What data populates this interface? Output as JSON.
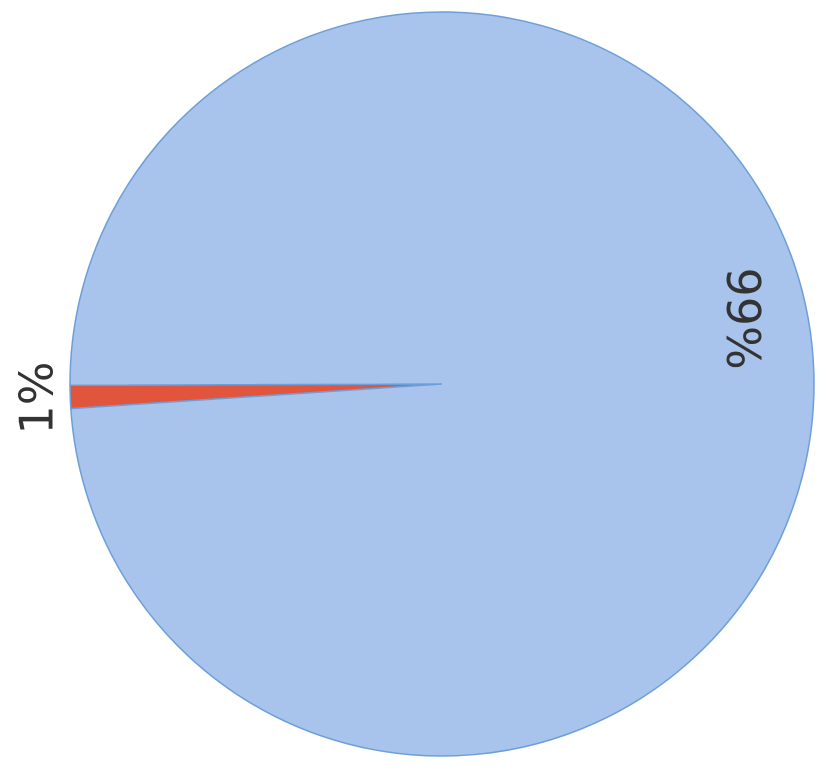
{
  "chart_data": {
    "type": "pie",
    "values": [
      1,
      99
    ],
    "value_labels": [
      "1%",
      "99%"
    ],
    "colors": [
      "#e2553d",
      "#a8c3ec"
    ]
  }
}
